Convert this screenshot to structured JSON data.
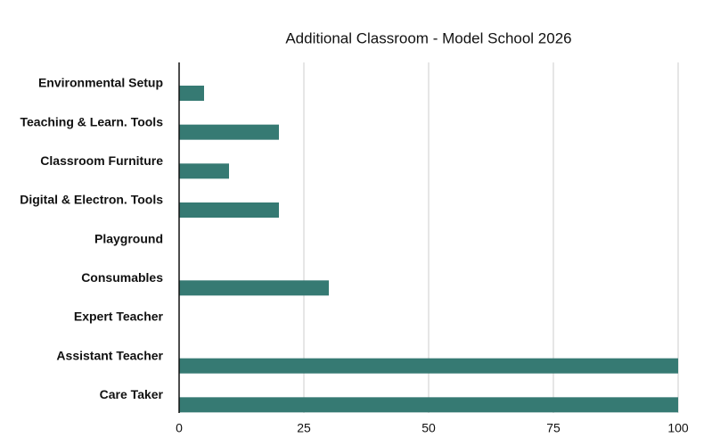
{
  "chart_data": {
    "type": "hbar",
    "title": "Additional Classroom - Model School 2026",
    "categories": [
      "Environmental Setup",
      "Teaching & Learn. Tools",
      "Classroom Furniture",
      "Digital & Electron. Tools",
      "Playground",
      "Consumables",
      "Expert Teacher",
      "Assistant Teacher",
      "Care Taker"
    ],
    "values": [
      5,
      20,
      10,
      20,
      0,
      30,
      0,
      100,
      100
    ],
    "color": "#367a73",
    "xlim": [
      0,
      100
    ],
    "xticks": [
      0,
      25,
      50,
      75,
      100
    ],
    "grid": true
  }
}
